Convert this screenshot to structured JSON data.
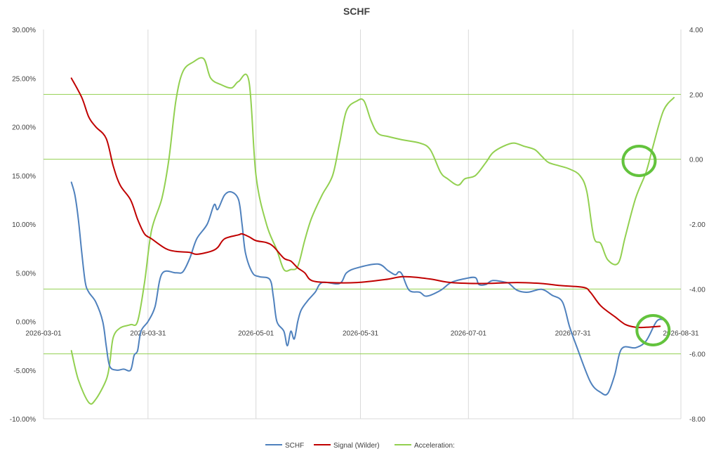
{
  "chart_data": {
    "type": "line",
    "title": "SCHF",
    "x_axis": {
      "ticks": [
        "2026-03-01",
        "2026-03-31",
        "2026-05-01",
        "2026-05-31",
        "2026-07-01",
        "2026-07-31",
        "2026-08-31"
      ],
      "xlim": [
        "2026-03-01",
        "2026-08-31"
      ]
    },
    "y_left": {
      "ticks": [
        "30.00%",
        "25.00%",
        "20.00%",
        "15.00%",
        "10.00%",
        "5.00%",
        "0.00%",
        "-5.00%",
        "-10.00%"
      ],
      "ylim": [
        -10,
        30
      ]
    },
    "y_right": {
      "ticks": [
        "4.00",
        "2.00",
        "0.00",
        "-2.00",
        "-4.00",
        "-6.00",
        "-8.00"
      ],
      "ylim": [
        -8,
        4
      ]
    },
    "vertical_gridlines": true,
    "horizontal_reference_lines_right_axis": [
      2.0,
      0.0,
      -4.0,
      -6.0
    ],
    "legend_position": "bottom",
    "series": [
      {
        "name": "SCHF",
        "axis": "left",
        "color": "#4f81bd",
        "points": [
          [
            "2026-03-09",
            14.3
          ],
          [
            "2026-03-10",
            13.0
          ],
          [
            "2026-03-11",
            10.5
          ],
          [
            "2026-03-12",
            7.0
          ],
          [
            "2026-03-13",
            4.0
          ],
          [
            "2026-03-14",
            3.0
          ],
          [
            "2026-03-16",
            2.0
          ],
          [
            "2026-03-18",
            0.0
          ],
          [
            "2026-03-19",
            -2.5
          ],
          [
            "2026-03-20",
            -4.6
          ],
          [
            "2026-03-22",
            -5.0
          ],
          [
            "2026-03-24",
            -4.9
          ],
          [
            "2026-03-26",
            -5.0
          ],
          [
            "2026-03-27",
            -3.5
          ],
          [
            "2026-03-28",
            -3.0
          ],
          [
            "2026-03-29",
            -1.0
          ],
          [
            "2026-03-31",
            0.0
          ],
          [
            "2026-04-02",
            1.5
          ],
          [
            "2026-04-04",
            4.9
          ],
          [
            "2026-04-08",
            5.0
          ],
          [
            "2026-04-10",
            5.1
          ],
          [
            "2026-04-12",
            6.5
          ],
          [
            "2026-04-14",
            8.5
          ],
          [
            "2026-04-17",
            10.0
          ],
          [
            "2026-04-19",
            12.0
          ],
          [
            "2026-04-20",
            11.5
          ],
          [
            "2026-04-22",
            13.0
          ],
          [
            "2026-04-24",
            13.3
          ],
          [
            "2026-04-26",
            12.5
          ],
          [
            "2026-04-27",
            10.0
          ],
          [
            "2026-04-28",
            7.0
          ],
          [
            "2026-04-30",
            5.0
          ],
          [
            "2026-05-02",
            4.6
          ],
          [
            "2026-05-05",
            4.3
          ],
          [
            "2026-05-06",
            2.5
          ],
          [
            "2026-05-07",
            0.0
          ],
          [
            "2026-05-09",
            -1.0
          ],
          [
            "2026-05-10",
            -2.5
          ],
          [
            "2026-05-11",
            -1.0
          ],
          [
            "2026-05-12",
            -1.8
          ],
          [
            "2026-05-13",
            0.0
          ],
          [
            "2026-05-14",
            1.2
          ],
          [
            "2026-05-16",
            2.2
          ],
          [
            "2026-05-18",
            3.0
          ],
          [
            "2026-05-20",
            4.0
          ],
          [
            "2026-05-25",
            3.9
          ],
          [
            "2026-05-27",
            5.0
          ],
          [
            "2026-05-30",
            5.5
          ],
          [
            "2026-06-05",
            5.9
          ],
          [
            "2026-06-08",
            5.2
          ],
          [
            "2026-06-10",
            4.8
          ],
          [
            "2026-06-11",
            5.1
          ],
          [
            "2026-06-12",
            4.8
          ],
          [
            "2026-06-14",
            3.2
          ],
          [
            "2026-06-17",
            3.0
          ],
          [
            "2026-06-19",
            2.6
          ],
          [
            "2026-06-23",
            3.2
          ],
          [
            "2026-06-26",
            4.0
          ],
          [
            "2026-06-30",
            4.4
          ],
          [
            "2026-07-03",
            4.5
          ],
          [
            "2026-07-04",
            3.8
          ],
          [
            "2026-07-06",
            3.8
          ],
          [
            "2026-07-08",
            4.2
          ],
          [
            "2026-07-12",
            4.0
          ],
          [
            "2026-07-13",
            3.8
          ],
          [
            "2026-07-15",
            3.2
          ],
          [
            "2026-07-18",
            3.0
          ],
          [
            "2026-07-22",
            3.3
          ],
          [
            "2026-07-25",
            2.7
          ],
          [
            "2026-07-28",
            2.0
          ],
          [
            "2026-07-30",
            -0.5
          ],
          [
            "2026-08-01",
            -2.5
          ],
          [
            "2026-08-05",
            -6.2
          ],
          [
            "2026-08-08",
            -7.3
          ],
          [
            "2026-08-10",
            -7.4
          ],
          [
            "2026-08-12",
            -5.5
          ],
          [
            "2026-08-14",
            -2.8
          ],
          [
            "2026-08-18",
            -2.7
          ],
          [
            "2026-08-21",
            -2.0
          ],
          [
            "2026-08-24",
            0.0
          ],
          [
            "2026-08-26",
            0.2
          ]
        ]
      },
      {
        "name": "Signal (Wilder)",
        "axis": "left",
        "color": "#c00000",
        "points": [
          [
            "2026-03-09",
            25.0
          ],
          [
            "2026-03-12",
            23.0
          ],
          [
            "2026-03-14",
            21.0
          ],
          [
            "2026-03-16",
            20.0
          ],
          [
            "2026-03-19",
            18.8
          ],
          [
            "2026-03-21",
            16.0
          ],
          [
            "2026-03-23",
            14.0
          ],
          [
            "2026-03-26",
            12.5
          ],
          [
            "2026-03-28",
            10.5
          ],
          [
            "2026-03-30",
            9.0
          ],
          [
            "2026-04-01",
            8.5
          ],
          [
            "2026-04-05",
            7.5
          ],
          [
            "2026-04-08",
            7.2
          ],
          [
            "2026-04-12",
            7.1
          ],
          [
            "2026-04-14",
            6.9
          ],
          [
            "2026-04-18",
            7.2
          ],
          [
            "2026-04-20",
            7.6
          ],
          [
            "2026-04-22",
            8.5
          ],
          [
            "2026-04-26",
            8.9
          ],
          [
            "2026-04-27",
            9.0
          ],
          [
            "2026-04-29",
            8.7
          ],
          [
            "2026-05-01",
            8.3
          ],
          [
            "2026-05-04",
            8.1
          ],
          [
            "2026-05-06",
            7.7
          ],
          [
            "2026-05-09",
            6.5
          ],
          [
            "2026-05-11",
            6.2
          ],
          [
            "2026-05-13",
            5.5
          ],
          [
            "2026-05-15",
            5.0
          ],
          [
            "2026-05-17",
            4.2
          ],
          [
            "2026-05-22",
            4.0
          ],
          [
            "2026-05-30",
            4.0
          ],
          [
            "2026-06-07",
            4.3
          ],
          [
            "2026-06-12",
            4.6
          ],
          [
            "2026-06-17",
            4.5
          ],
          [
            "2026-06-21",
            4.3
          ],
          [
            "2026-06-26",
            4.0
          ],
          [
            "2026-07-05",
            3.9
          ],
          [
            "2026-07-15",
            4.0
          ],
          [
            "2026-07-22",
            3.9
          ],
          [
            "2026-07-27",
            3.7
          ],
          [
            "2026-08-03",
            3.5
          ],
          [
            "2026-08-05",
            3.0
          ],
          [
            "2026-08-08",
            1.6
          ],
          [
            "2026-08-12",
            0.5
          ],
          [
            "2026-08-15",
            -0.3
          ],
          [
            "2026-08-18",
            -0.6
          ],
          [
            "2026-08-21",
            -0.6
          ],
          [
            "2026-08-25",
            -0.5
          ]
        ]
      },
      {
        "name": "Acceleration:",
        "axis": "right",
        "color": "#92d050",
        "points": [
          [
            "2026-03-09",
            -5.9
          ],
          [
            "2026-03-11",
            -6.8
          ],
          [
            "2026-03-14",
            -7.5
          ],
          [
            "2026-03-16",
            -7.4
          ],
          [
            "2026-03-19",
            -6.8
          ],
          [
            "2026-03-20",
            -6.3
          ],
          [
            "2026-03-21",
            -5.5
          ],
          [
            "2026-03-23",
            -5.2
          ],
          [
            "2026-03-26",
            -5.1
          ],
          [
            "2026-03-28",
            -5.0
          ],
          [
            "2026-03-30",
            -3.8
          ],
          [
            "2026-04-01",
            -2.2
          ],
          [
            "2026-04-04",
            -1.2
          ],
          [
            "2026-04-06",
            0.0
          ],
          [
            "2026-04-08",
            1.8
          ],
          [
            "2026-04-10",
            2.7
          ],
          [
            "2026-04-13",
            3.0
          ],
          [
            "2026-04-16",
            3.1
          ],
          [
            "2026-04-18",
            2.5
          ],
          [
            "2026-04-21",
            2.3
          ],
          [
            "2026-04-24",
            2.2
          ],
          [
            "2026-04-26",
            2.4
          ],
          [
            "2026-04-29",
            2.4
          ],
          [
            "2026-05-01",
            -0.5
          ],
          [
            "2026-05-04",
            -2.0
          ],
          [
            "2026-05-07",
            -2.8
          ],
          [
            "2026-05-09",
            -3.4
          ],
          [
            "2026-05-11",
            -3.4
          ],
          [
            "2026-05-13",
            -3.3
          ],
          [
            "2026-05-15",
            -2.5
          ],
          [
            "2026-05-17",
            -1.8
          ],
          [
            "2026-05-20",
            -1.1
          ],
          [
            "2026-05-23",
            -0.5
          ],
          [
            "2026-05-25",
            0.5
          ],
          [
            "2026-05-27",
            1.5
          ],
          [
            "2026-05-30",
            1.8
          ],
          [
            "2026-06-01",
            1.8
          ],
          [
            "2026-06-03",
            1.2
          ],
          [
            "2026-06-05",
            0.8
          ],
          [
            "2026-06-08",
            0.7
          ],
          [
            "2026-06-12",
            0.6
          ],
          [
            "2026-06-17",
            0.5
          ],
          [
            "2026-06-20",
            0.3
          ],
          [
            "2026-06-23",
            -0.4
          ],
          [
            "2026-06-25",
            -0.6
          ],
          [
            "2026-06-28",
            -0.8
          ],
          [
            "2026-06-30",
            -0.6
          ],
          [
            "2026-07-03",
            -0.5
          ],
          [
            "2026-07-06",
            -0.1
          ],
          [
            "2026-07-08",
            0.2
          ],
          [
            "2026-07-11",
            0.4
          ],
          [
            "2026-07-14",
            0.5
          ],
          [
            "2026-07-17",
            0.4
          ],
          [
            "2026-07-20",
            0.3
          ],
          [
            "2026-07-22",
            0.1
          ],
          [
            "2026-07-24",
            -0.1
          ],
          [
            "2026-07-27",
            -0.2
          ],
          [
            "2026-07-30",
            -0.3
          ],
          [
            "2026-08-02",
            -0.5
          ],
          [
            "2026-08-04",
            -1.0
          ],
          [
            "2026-08-06",
            -2.4
          ],
          [
            "2026-08-08",
            -2.6
          ],
          [
            "2026-08-10",
            -3.1
          ],
          [
            "2026-08-13",
            -3.2
          ],
          [
            "2026-08-15",
            -2.4
          ],
          [
            "2026-08-18",
            -1.2
          ],
          [
            "2026-08-21",
            -0.4
          ],
          [
            "2026-08-23",
            0.4
          ],
          [
            "2026-08-26",
            1.5
          ],
          [
            "2026-08-29",
            1.9
          ]
        ]
      }
    ],
    "annotations": [
      {
        "shape": "circle",
        "color": "#63c33d",
        "x": "2026-08-19",
        "y_right": -0.05
      },
      {
        "shape": "circle",
        "color": "#63c33d",
        "x": "2026-08-23",
        "y_left": -0.9
      }
    ]
  }
}
